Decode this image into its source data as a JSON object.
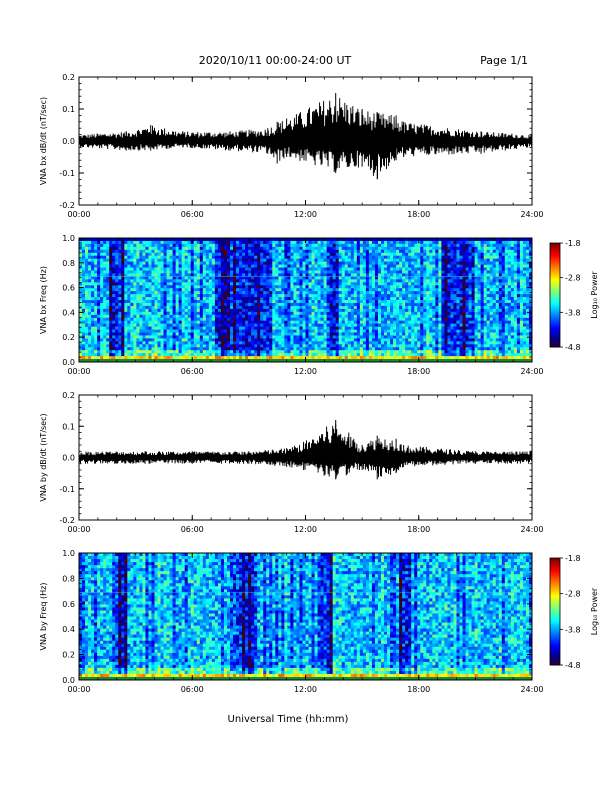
{
  "header": {
    "title": "2020/10/11  00:00-24:00 UT",
    "page": "Page 1/1"
  },
  "footer": {
    "xlabel": "Universal Time (hh:mm)"
  },
  "chart_data": [
    {
      "type": "line",
      "ylabel": "VNA bx dB/dt (nT/sec)",
      "ylim": [
        -0.2,
        0.2
      ],
      "yticks": [
        "0.2",
        "0.1",
        "0.0",
        "-0.1",
        "-0.2"
      ],
      "xticks": [
        "00:00",
        "06:00",
        "12:00",
        "18:00",
        "24:00"
      ],
      "xlim_hours": [
        0,
        24
      ],
      "series": [
        {
          "x_hours": [
            0,
            2.5,
            3.8,
            5.5,
            8.0,
            10.0,
            10.5,
            11.0,
            13.6,
            15.0,
            15.8,
            16.8,
            17.2,
            21.3,
            24.0
          ],
          "max": [
            0.02,
            0.03,
            0.05,
            0.03,
            0.03,
            0.04,
            0.06,
            0.07,
            0.15,
            0.1,
            0.09,
            0.08,
            0.06,
            0.03,
            0.02
          ],
          "min": [
            -0.02,
            -0.03,
            -0.03,
            -0.02,
            -0.03,
            -0.04,
            -0.07,
            -0.05,
            -0.1,
            -0.08,
            -0.12,
            -0.06,
            -0.05,
            -0.04,
            -0.02
          ]
        }
      ]
    },
    {
      "type": "heatmap",
      "ylabel": "VNA bx Freq (Hz)",
      "ylim": [
        0.0,
        1.0
      ],
      "yticks": [
        "1.0",
        "0.8",
        "0.6",
        "0.4",
        "0.2",
        "0.0"
      ],
      "xticks": [
        "00:00",
        "06:00",
        "12:00",
        "18:00",
        "24:00"
      ],
      "colorbar": {
        "label": "Log₁₀ Power",
        "ticks": [
          "-1.8",
          "-2.8",
          "-3.8",
          "-4.8"
        ],
        "range": [
          -4.8,
          -1.8
        ]
      },
      "quiet_bands_hours": [
        [
          1.6,
          2.4
        ],
        [
          7.2,
          10.2
        ],
        [
          13.2,
          13.8
        ],
        [
          19.2,
          21.0
        ]
      ]
    },
    {
      "type": "line",
      "ylabel": "VNA by dB/dt (nT/sec)",
      "ylim": [
        -0.2,
        0.2
      ],
      "yticks": [
        "0.2",
        "0.1",
        "0.0",
        "-0.1",
        "-0.2"
      ],
      "xticks": [
        "00:00",
        "06:00",
        "12:00",
        "18:00",
        "24:00"
      ],
      "xlim_hours": [
        0,
        24
      ],
      "series": [
        {
          "x_hours": [
            0,
            3.5,
            6.0,
            9.0,
            11.0,
            11.9,
            13.6,
            15.0,
            15.8,
            16.8,
            17.2,
            21.0,
            24.0
          ],
          "max": [
            0.02,
            0.02,
            0.02,
            0.02,
            0.03,
            0.05,
            0.12,
            0.04,
            0.07,
            0.06,
            0.04,
            0.02,
            0.02
          ],
          "min": [
            -0.02,
            -0.02,
            -0.02,
            -0.02,
            -0.03,
            -0.04,
            -0.07,
            -0.04,
            -0.07,
            -0.05,
            -0.03,
            -0.02,
            -0.02
          ]
        }
      ]
    },
    {
      "type": "heatmap",
      "ylabel": "VNA by Freq (Hz)",
      "ylim": [
        0.0,
        1.0
      ],
      "yticks": [
        "1.0",
        "0.8",
        "0.6",
        "0.4",
        "0.2",
        "0.0"
      ],
      "xticks": [
        "00:00",
        "06:00",
        "12:00",
        "18:00",
        "24:00"
      ],
      "colorbar": {
        "label": "Log₁₀ Power",
        "ticks": [
          "-1.8",
          "-2.8",
          "-3.8",
          "-4.8"
        ],
        "range": [
          -4.8,
          -1.8
        ]
      },
      "quiet_bands_hours": [
        [
          2.0,
          2.6
        ],
        [
          8.0,
          9.5
        ],
        [
          12.8,
          13.4
        ],
        [
          17.0,
          17.6
        ]
      ]
    }
  ]
}
